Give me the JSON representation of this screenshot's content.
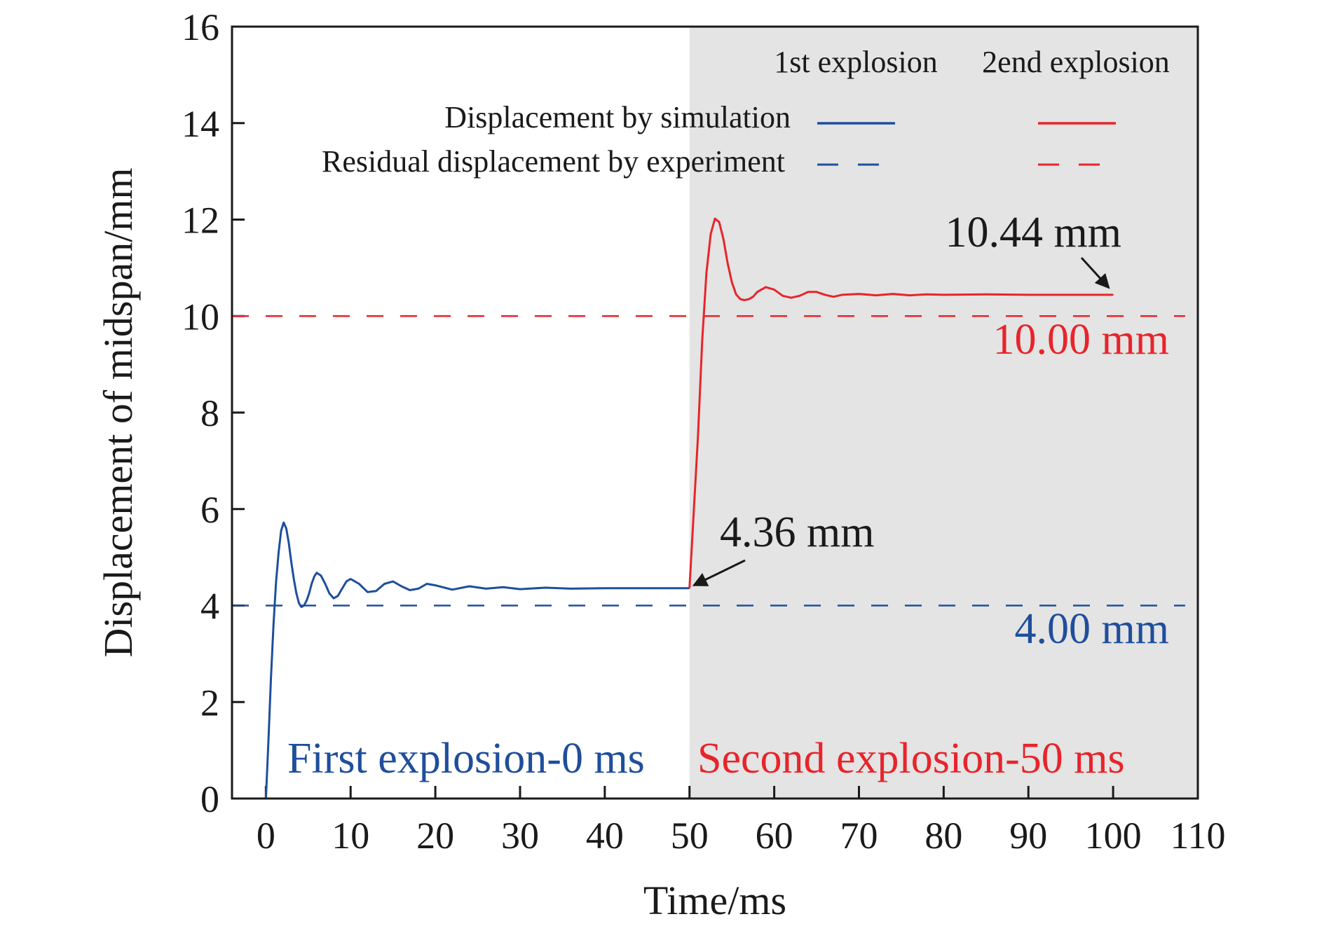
{
  "colors": {
    "first": "#1f4e9c",
    "second": "#e8242b",
    "shade": "#e3e4e3",
    "axis": "#1a1a1a",
    "annot": "#1a1a1a"
  },
  "chart_data": {
    "type": "line",
    "xlabel": "Time/ms",
    "ylabel": "Displacement of midspan/mm",
    "xlim": [
      -4,
      110
    ],
    "ylim": [
      0,
      16
    ],
    "xticks": [
      0,
      10,
      20,
      30,
      40,
      50,
      60,
      70,
      80,
      90,
      100,
      110
    ],
    "yticks": [
      0,
      2,
      4,
      6,
      8,
      10,
      12,
      14,
      16
    ],
    "grid": false,
    "legend_position": "top-right",
    "legend": {
      "column_headers": [
        "1st explosion",
        "2end explosion"
      ],
      "row_labels": [
        "Displacement by simulation",
        "Residual displacement by experiment"
      ]
    },
    "shaded_region": {
      "x": [
        50,
        110
      ]
    },
    "series": [
      {
        "name": "Displacement by simulation (1st explosion)",
        "style": "solid",
        "color_key": "first",
        "x": [
          0.0,
          0.3,
          0.6,
          0.9,
          1.2,
          1.5,
          1.8,
          2.1,
          2.4,
          2.7,
          3.0,
          3.3,
          3.6,
          3.9,
          4.2,
          4.5,
          4.8,
          5.1,
          5.4,
          5.7,
          6.0,
          6.5,
          7.0,
          7.5,
          8.0,
          8.5,
          9.0,
          9.5,
          10.0,
          11.0,
          12.0,
          13.0,
          14.0,
          15.0,
          16.0,
          17.0,
          18.0,
          19.0,
          20.0,
          22.0,
          24.0,
          26.0,
          28.0,
          30.0,
          33.0,
          36.0,
          40.0,
          44.0,
          48.0,
          50.0
        ],
        "values": [
          0.0,
          1.2,
          2.5,
          3.6,
          4.5,
          5.1,
          5.55,
          5.72,
          5.6,
          5.3,
          4.9,
          4.55,
          4.25,
          4.05,
          3.97,
          4.0,
          4.1,
          4.25,
          4.45,
          4.6,
          4.68,
          4.62,
          4.45,
          4.25,
          4.15,
          4.2,
          4.35,
          4.5,
          4.55,
          4.45,
          4.28,
          4.3,
          4.45,
          4.5,
          4.4,
          4.32,
          4.35,
          4.45,
          4.42,
          4.33,
          4.4,
          4.35,
          4.38,
          4.34,
          4.37,
          4.35,
          4.36,
          4.36,
          4.36,
          4.36
        ]
      },
      {
        "name": "Displacement by simulation (2end explosion)",
        "style": "solid",
        "color_key": "second",
        "x": [
          50.0,
          51.0,
          51.5,
          52.0,
          52.5,
          53.0,
          53.5,
          54.0,
          54.5,
          55.0,
          55.5,
          56.0,
          56.5,
          57.0,
          57.5,
          58.0,
          59.0,
          60.0,
          61.0,
          62.0,
          63.0,
          64.0,
          65.0,
          66.0,
          67.0,
          68.0,
          70.0,
          72.0,
          74.0,
          76.0,
          78.0,
          80.0,
          85.0,
          90.0,
          95.0,
          100.0
        ],
        "values": [
          4.36,
          7.5,
          9.5,
          10.9,
          11.7,
          12.02,
          11.95,
          11.6,
          11.1,
          10.7,
          10.45,
          10.35,
          10.33,
          10.35,
          10.4,
          10.5,
          10.6,
          10.55,
          10.42,
          10.38,
          10.42,
          10.5,
          10.5,
          10.44,
          10.4,
          10.44,
          10.46,
          10.43,
          10.46,
          10.43,
          10.45,
          10.44,
          10.45,
          10.44,
          10.44,
          10.44
        ]
      },
      {
        "name": "Residual displacement by experiment (1st explosion)",
        "style": "dashed",
        "color_key": "first",
        "x": [
          -4,
          108.5
        ],
        "values": [
          4.0,
          4.0
        ]
      },
      {
        "name": "Residual displacement by experiment (2end explosion)",
        "style": "dashed",
        "color_key": "second",
        "x": [
          -4,
          108.5
        ],
        "values": [
          10.0,
          10.0
        ]
      }
    ],
    "annotations": [
      {
        "text": "10.44 mm",
        "point": [
          100,
          10.44
        ],
        "color_key": "annot"
      },
      {
        "text": "10.00 mm",
        "point": [
          104,
          10.0
        ],
        "color_key": "second"
      },
      {
        "text": "4.36 mm",
        "point": [
          50,
          4.36
        ],
        "color_key": "annot"
      },
      {
        "text": "4.00 mm",
        "point": [
          104,
          4.0
        ],
        "color_key": "first"
      },
      {
        "text": "First explosion-0 ms",
        "point": [
          3,
          0.5
        ],
        "color_key": "first"
      },
      {
        "text": "Second explosion-50 ms",
        "point": [
          51,
          0.5
        ],
        "color_key": "second"
      }
    ]
  }
}
